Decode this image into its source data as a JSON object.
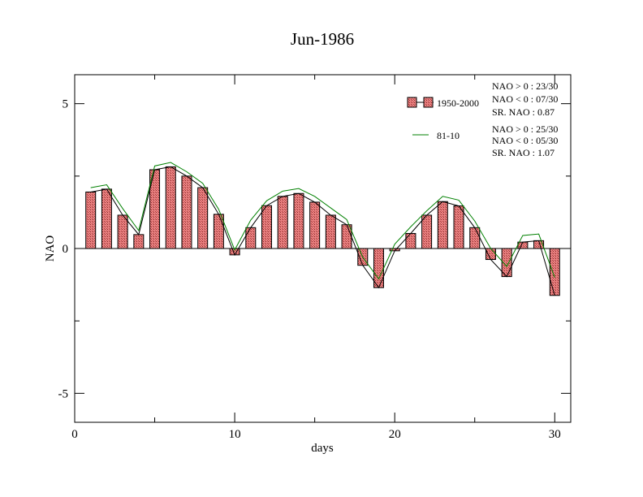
{
  "chart_data": {
    "type": "bar",
    "title": "Jun-1986",
    "xlabel": "days",
    "ylabel": "NAO",
    "xlim": [
      0,
      31
    ],
    "ylim": [
      -6,
      6
    ],
    "xticks": [
      0,
      10,
      20,
      30
    ],
    "xtick_labels": [
      "0",
      "10",
      "20",
      "30"
    ],
    "yticks": [
      -5,
      0,
      5
    ],
    "ytick_labels": [
      "-5",
      "0",
      "5"
    ],
    "grid": false,
    "legend_position": "top-right",
    "series": [
      {
        "name": "1950-2000",
        "type": "bar",
        "color": "#e07070",
        "x": [
          1,
          2,
          3,
          4,
          5,
          6,
          7,
          8,
          9,
          10,
          11,
          12,
          13,
          14,
          15,
          16,
          17,
          18,
          19,
          20,
          21,
          22,
          23,
          24,
          25,
          26,
          27,
          28,
          29,
          30
        ],
        "values": [
          1.95,
          2.05,
          1.15,
          0.48,
          2.72,
          2.82,
          2.5,
          2.1,
          1.18,
          -0.22,
          0.72,
          1.48,
          1.8,
          1.9,
          1.6,
          1.15,
          0.82,
          -0.58,
          -1.35,
          -0.08,
          0.52,
          1.15,
          1.62,
          1.47,
          0.72,
          -0.38,
          -0.97,
          0.22,
          0.27,
          -1.62
        ]
      },
      {
        "name": "81-10",
        "type": "line",
        "color": "#008000",
        "x": [
          1,
          2,
          3,
          4,
          5,
          6,
          7,
          8,
          9,
          10,
          11,
          12,
          13,
          14,
          15,
          16,
          17,
          18,
          19,
          20,
          21,
          22,
          23,
          24,
          25,
          26,
          27,
          28,
          29,
          30
        ],
        "values": [
          2.1,
          2.2,
          1.38,
          0.62,
          2.85,
          2.97,
          2.65,
          2.25,
          1.35,
          -0.05,
          0.98,
          1.65,
          1.98,
          2.07,
          1.8,
          1.4,
          1.0,
          -0.3,
          -1.05,
          0.15,
          0.75,
          1.3,
          1.8,
          1.67,
          0.95,
          0.0,
          -0.62,
          0.45,
          0.5,
          -1.0
        ]
      },
      {
        "name": "",
        "type": "line",
        "color": "#000000",
        "x": [
          1,
          2,
          3,
          4,
          5,
          6,
          7,
          8,
          9,
          10,
          11,
          12,
          13,
          14,
          15,
          16,
          17,
          18,
          19,
          20,
          21,
          22,
          23,
          24,
          25,
          26,
          27,
          28,
          29,
          30
        ],
        "values": [
          1.95,
          2.05,
          1.15,
          0.48,
          2.72,
          2.82,
          2.5,
          2.1,
          1.18,
          -0.22,
          0.72,
          1.48,
          1.8,
          1.9,
          1.6,
          1.15,
          0.82,
          -0.58,
          -1.35,
          -0.08,
          0.52,
          1.15,
          1.62,
          1.47,
          0.72,
          -0.38,
          -0.97,
          0.22,
          0.27,
          -1.62
        ]
      }
    ],
    "annotations": {
      "stats_1950": [
        "NAO > 0 : 23/30",
        "NAO < 0 : 07/30",
        "SR. NAO :  0.87"
      ],
      "stats_8110": [
        "NAO > 0 : 25/30",
        "NAO < 0 : 05/30",
        "SR. NAO :  1.07"
      ]
    }
  }
}
